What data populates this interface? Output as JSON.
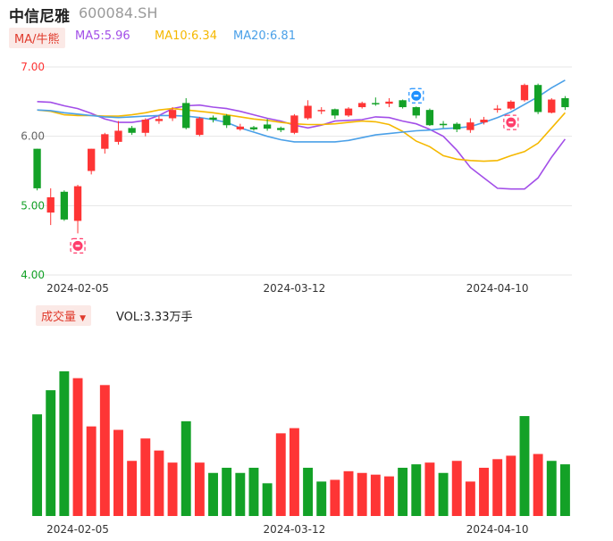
{
  "header": {
    "name": "中信尼雅",
    "code": "600084.SH"
  },
  "legend": {
    "ma_tag": "MA/牛熊",
    "ma5": {
      "label": "MA5:5.96",
      "color": "#a24ee8"
    },
    "ma10": {
      "label": "MA10:6.34",
      "color": "#f5b800"
    },
    "ma20": {
      "label": "MA20:6.81",
      "color": "#4aa0e8"
    }
  },
  "volume_panel": {
    "tag": "成交量",
    "vol_label": "VOL:3.33万手"
  },
  "colors": {
    "up": "#fe3535",
    "down": "#13a127",
    "grid": "#e6e6e6"
  },
  "chart_data": [
    {
      "type": "candlestick",
      "ylim": [
        4.0,
        7.0
      ],
      "y_ticks": [
        "7.00",
        "6.00",
        "5.00",
        "4.00"
      ],
      "x_ticks": [
        {
          "label": "2024-02-05",
          "index": 3
        },
        {
          "label": "2024-03-12",
          "index": 19
        },
        {
          "label": "2024-04-10",
          "index": 34
        }
      ],
      "candles": [
        {
          "o": 5.82,
          "c": 5.25,
          "h": 5.82,
          "l": 5.22
        },
        {
          "o": 4.9,
          "c": 5.12,
          "h": 5.25,
          "l": 4.72
        },
        {
          "o": 5.2,
          "c": 4.8,
          "h": 5.22,
          "l": 4.78
        },
        {
          "o": 4.78,
          "c": 5.28,
          "h": 5.3,
          "l": 4.6
        },
        {
          "o": 5.5,
          "c": 5.82,
          "h": 5.82,
          "l": 5.45
        },
        {
          "o": 5.82,
          "c": 6.03,
          "h": 6.05,
          "l": 5.75
        },
        {
          "o": 5.92,
          "c": 6.08,
          "h": 6.22,
          "l": 5.88
        },
        {
          "o": 6.12,
          "c": 6.05,
          "h": 6.15,
          "l": 6.02
        },
        {
          "o": 6.05,
          "c": 6.24,
          "h": 6.26,
          "l": 6.0
        },
        {
          "o": 6.22,
          "c": 6.25,
          "h": 6.3,
          "l": 6.18
        },
        {
          "o": 6.26,
          "c": 6.38,
          "h": 6.42,
          "l": 6.22
        },
        {
          "o": 6.48,
          "c": 6.12,
          "h": 6.55,
          "l": 6.1
        },
        {
          "o": 6.02,
          "c": 6.26,
          "h": 6.28,
          "l": 6.0
        },
        {
          "o": 6.27,
          "c": 6.24,
          "h": 6.3,
          "l": 6.2
        },
        {
          "o": 6.3,
          "c": 6.16,
          "h": 6.32,
          "l": 6.12
        },
        {
          "o": 6.1,
          "c": 6.14,
          "h": 6.18,
          "l": 6.08
        },
        {
          "o": 6.13,
          "c": 6.1,
          "h": 6.15,
          "l": 6.08
        },
        {
          "o": 6.17,
          "c": 6.11,
          "h": 6.25,
          "l": 6.08
        },
        {
          "o": 6.12,
          "c": 6.09,
          "h": 6.14,
          "l": 6.06
        },
        {
          "o": 6.05,
          "c": 6.3,
          "h": 6.32,
          "l": 6.03
        },
        {
          "o": 6.26,
          "c": 6.44,
          "h": 6.52,
          "l": 6.24
        },
        {
          "o": 6.37,
          "c": 6.38,
          "h": 6.42,
          "l": 6.32
        },
        {
          "o": 6.39,
          "c": 6.3,
          "h": 6.4,
          "l": 6.25
        },
        {
          "o": 6.3,
          "c": 6.4,
          "h": 6.42,
          "l": 6.28
        },
        {
          "o": 6.42,
          "c": 6.48,
          "h": 6.5,
          "l": 6.4
        },
        {
          "o": 6.48,
          "c": 6.47,
          "h": 6.56,
          "l": 6.44
        },
        {
          "o": 6.47,
          "c": 6.5,
          "h": 6.55,
          "l": 6.42
        },
        {
          "o": 6.52,
          "c": 6.42,
          "h": 6.53,
          "l": 6.4
        },
        {
          "o": 6.42,
          "c": 6.3,
          "h": 6.43,
          "l": 6.26
        },
        {
          "o": 6.38,
          "c": 6.16,
          "h": 6.4,
          "l": 6.15
        },
        {
          "o": 6.18,
          "c": 6.16,
          "h": 6.22,
          "l": 6.12
        },
        {
          "o": 6.18,
          "c": 6.1,
          "h": 6.2,
          "l": 6.06
        },
        {
          "o": 6.09,
          "c": 6.2,
          "h": 6.26,
          "l": 6.05
        },
        {
          "o": 6.2,
          "c": 6.24,
          "h": 6.28,
          "l": 6.17
        },
        {
          "o": 6.38,
          "c": 6.4,
          "h": 6.45,
          "l": 6.34
        },
        {
          "o": 6.4,
          "c": 6.5,
          "h": 6.52,
          "l": 6.38
        },
        {
          "o": 6.52,
          "c": 6.74,
          "h": 6.76,
          "l": 6.5
        },
        {
          "o": 6.74,
          "c": 6.35,
          "h": 6.76,
          "l": 6.32
        },
        {
          "o": 6.34,
          "c": 6.53,
          "h": 6.55,
          "l": 6.33
        },
        {
          "o": 6.55,
          "c": 6.42,
          "h": 6.58,
          "l": 6.38
        }
      ],
      "series": [
        {
          "name": "MA5",
          "color": "#a24ee8",
          "values": [
            6.5,
            6.49,
            6.44,
            6.4,
            6.33,
            6.25,
            6.2,
            6.2,
            6.23,
            6.3,
            6.4,
            6.44,
            6.45,
            6.42,
            6.4,
            6.36,
            6.31,
            6.26,
            6.22,
            6.16,
            6.12,
            6.16,
            6.22,
            6.23,
            6.24,
            6.28,
            6.27,
            6.22,
            6.18,
            6.1,
            6.0,
            5.8,
            5.55,
            5.4,
            5.25,
            5.24,
            5.24,
            5.4,
            5.7,
            5.96
          ]
        },
        {
          "name": "MA10",
          "color": "#f5b800",
          "values": [
            6.38,
            6.36,
            6.31,
            6.3,
            6.3,
            6.29,
            6.29,
            6.31,
            6.34,
            6.38,
            6.4,
            6.38,
            6.36,
            6.34,
            6.31,
            6.28,
            6.25,
            6.23,
            6.2,
            6.18,
            6.17,
            6.17,
            6.18,
            6.2,
            6.22,
            6.21,
            6.17,
            6.07,
            5.93,
            5.85,
            5.72,
            5.67,
            5.65,
            5.64,
            5.65,
            5.72,
            5.78,
            5.9,
            6.12,
            6.34
          ]
        },
        {
          "name": "MA20",
          "color": "#4aa0e8",
          "values": [
            6.38,
            6.37,
            6.34,
            6.32,
            6.3,
            6.28,
            6.27,
            6.28,
            6.29,
            6.3,
            6.3,
            6.29,
            6.27,
            6.24,
            6.2,
            6.12,
            6.06,
            6.0,
            5.95,
            5.92,
            5.92,
            5.92,
            5.92,
            5.94,
            5.98,
            6.02,
            6.04,
            6.06,
            6.08,
            6.09,
            6.11,
            6.12,
            6.14,
            6.2,
            6.27,
            6.35,
            6.46,
            6.57,
            6.7,
            6.81
          ]
        }
      ],
      "markers": [
        {
          "index": 3,
          "kind": "bull",
          "color": "#ff3d6b"
        },
        {
          "index": 28,
          "kind": "new",
          "color": "#1e90ff"
        },
        {
          "index": 35,
          "kind": "bull",
          "color": "#ff3d6b"
        }
      ]
    },
    {
      "type": "bar",
      "name": "成交量",
      "ylim": [
        0,
        100
      ],
      "values": [
        59,
        73,
        84,
        80,
        52,
        76,
        50,
        32,
        45,
        38,
        31,
        55,
        31,
        25,
        28,
        25,
        28,
        19,
        48,
        51,
        28,
        20,
        21,
        26,
        25,
        24,
        23,
        28,
        30,
        31,
        25,
        32,
        20,
        28,
        33,
        35,
        58,
        36,
        32,
        30
      ],
      "up": [
        false,
        false,
        false,
        true,
        true,
        true,
        true,
        true,
        true,
        true,
        true,
        false,
        true,
        false,
        false,
        false,
        false,
        false,
        true,
        true,
        false,
        false,
        true,
        true,
        true,
        true,
        true,
        false,
        false,
        true,
        false,
        true,
        true,
        true,
        true,
        true,
        false,
        true,
        false,
        false
      ]
    }
  ]
}
